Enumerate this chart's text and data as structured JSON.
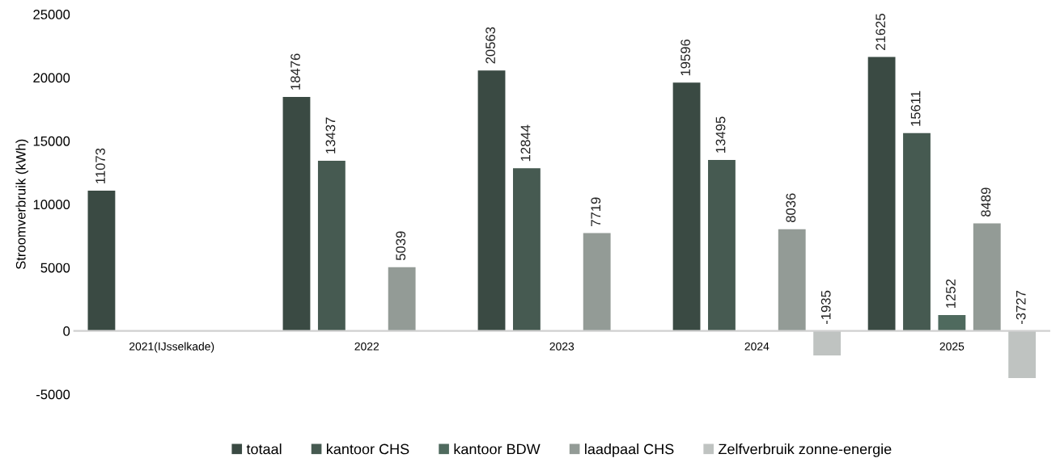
{
  "chart_data": {
    "type": "bar",
    "ylabel": "Stroomverbruik (kWh)",
    "categories": [
      "2021(IJsselkade)",
      "2022",
      "2023",
      "2024",
      "2025"
    ],
    "series": [
      {
        "name": "totaal",
        "color": "#3a4a43",
        "values": [
          11073,
          18476,
          20563,
          19596,
          21625
        ]
      },
      {
        "name": "kantoor CHS",
        "color": "#465a51",
        "values": [
          null,
          13437,
          12844,
          13495,
          15611
        ]
      },
      {
        "name": "kantoor BDW",
        "color": "#4f6a5e",
        "values": [
          null,
          null,
          null,
          null,
          1252
        ]
      },
      {
        "name": "laadpaal CHS",
        "color": "#939b96",
        "values": [
          null,
          5039,
          7719,
          8036,
          8489
        ]
      },
      {
        "name": "Zelfverbruik zonne-energie",
        "color": "#bfc3c1",
        "values": [
          null,
          null,
          null,
          -1935,
          -3727
        ]
      }
    ],
    "ylim": [
      -5000,
      25000
    ],
    "yticks": [
      -5000,
      0,
      5000,
      10000,
      15000,
      20000,
      25000
    ],
    "data_labels": true,
    "grid": false,
    "legend": "bottom"
  }
}
